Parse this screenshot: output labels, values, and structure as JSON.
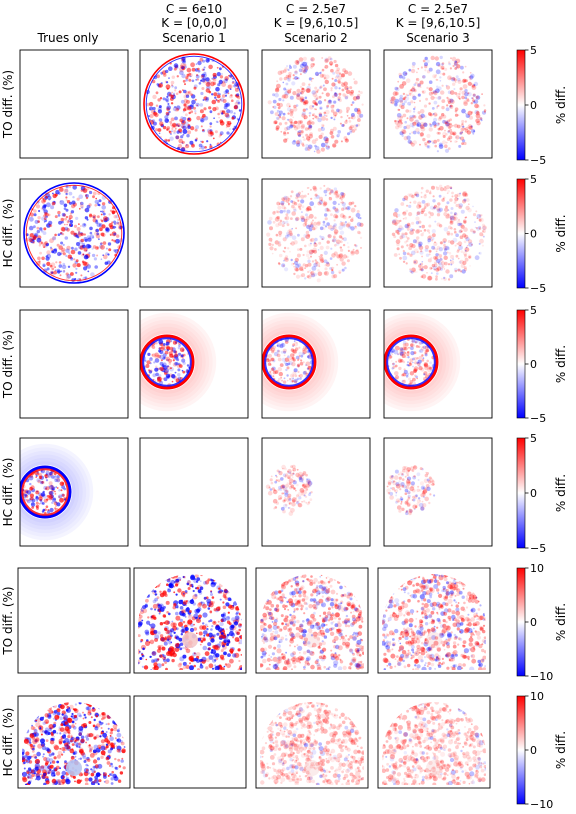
{
  "chart_data": {
    "type": "heatmap",
    "columns": [
      {
        "title_lines": [
          "Trues only"
        ]
      },
      {
        "title_lines": [
          "C = 6e10",
          "K = [0,0,0]",
          "Scenario 1"
        ]
      },
      {
        "title_lines": [
          "C = 2.5e7",
          "K = [9,6,10.5]",
          "Scenario 2"
        ]
      },
      {
        "title_lines": [
          "C = 2.5e7",
          "K = [9,6,10.5]",
          "Scenario 3"
        ]
      }
    ],
    "rows": [
      {
        "ylabel": "TO diff. (%)",
        "phantom": "disk",
        "empty_panel": 0,
        "colorbar": {
          "label": "% diff.",
          "ticks": [
            "5",
            "0",
            "−5"
          ],
          "range": [
            -5,
            5
          ]
        }
      },
      {
        "ylabel": "HC diff. (%)",
        "phantom": "disk",
        "empty_panel": 1,
        "colorbar": {
          "label": "% diff.",
          "ticks": [
            "5",
            "0",
            "−5"
          ],
          "range": [
            -5,
            5
          ]
        }
      },
      {
        "ylabel": "TO diff. (%)",
        "phantom": "small-disk",
        "empty_panel": 0,
        "colorbar": {
          "label": "% diff.",
          "ticks": [
            "5",
            "0",
            "−5"
          ],
          "range": [
            -5,
            5
          ]
        }
      },
      {
        "ylabel": "HC diff. (%)",
        "phantom": "small-disk",
        "empty_panel": 1,
        "colorbar": {
          "label": "% diff.",
          "ticks": [
            "5",
            "0",
            "−5"
          ],
          "range": [
            -5,
            5
          ]
        }
      },
      {
        "ylabel": "TO diff. (%)",
        "phantom": "dome",
        "empty_panel": 0,
        "colorbar": {
          "label": "% diff.",
          "ticks": [
            "10",
            "0",
            "−10"
          ],
          "range": [
            -10,
            10
          ]
        }
      },
      {
        "ylabel": "HC diff. (%)",
        "phantom": "dome",
        "empty_panel": 1,
        "colorbar": {
          "label": "% diff.",
          "ticks": [
            "10",
            "0",
            "−10"
          ],
          "range": [
            -10,
            10
          ]
        }
      }
    ],
    "colormap": "bwr",
    "colors": {
      "negative": "#0000ff",
      "zero": "#ffffff",
      "positive": "#ff0000"
    }
  }
}
